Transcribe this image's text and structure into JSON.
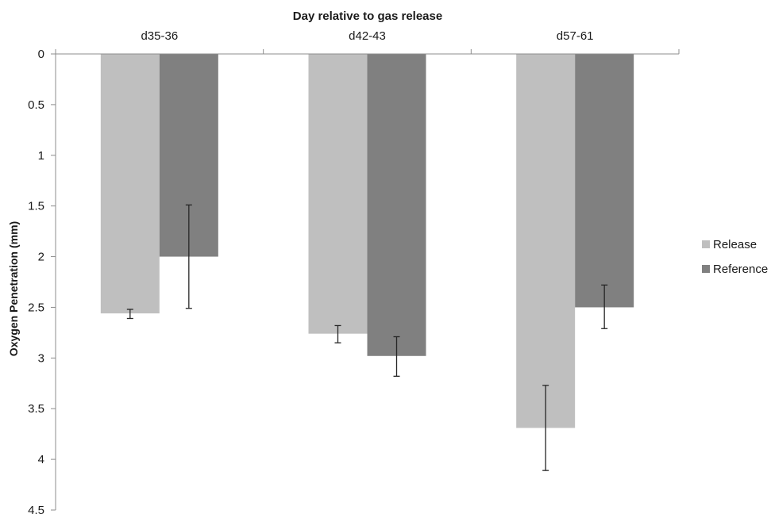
{
  "chart_data": {
    "type": "bar",
    "xlabel": "Day relative to gas release",
    "ylabel": "Oxygen Penetration (mm)",
    "categories": [
      "d35-36",
      "d42-43",
      "d57-61"
    ],
    "y_axis": {
      "min": 0,
      "max": 4.5,
      "step": 0.5,
      "inverted": true,
      "tick_labels": [
        "0",
        "0.5",
        "1",
        "1.5",
        "2",
        "2.5",
        "3",
        "3.5",
        "4",
        "4.5"
      ]
    },
    "category_axis_position": "top",
    "grid": false,
    "legend": "right",
    "series": [
      {
        "name": "Release",
        "color": "#bfbfbf",
        "values": [
          2.56,
          2.76,
          3.69
        ],
        "error_low": [
          2.52,
          2.68,
          3.27
        ],
        "error_high": [
          2.61,
          2.85,
          4.11
        ]
      },
      {
        "name": "Reference",
        "color": "#808080",
        "values": [
          2.0,
          2.98,
          2.5
        ],
        "error_low": [
          1.49,
          2.79,
          2.28
        ],
        "error_high": [
          2.51,
          3.18,
          2.71
        ]
      }
    ]
  }
}
